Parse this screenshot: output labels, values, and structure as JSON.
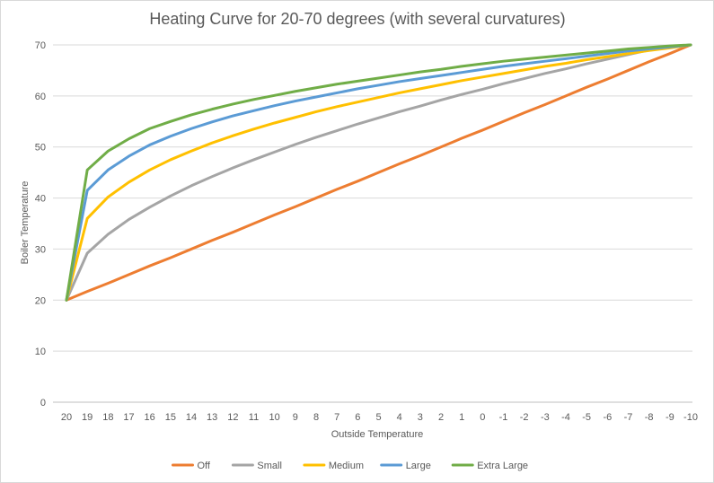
{
  "chart_data": {
    "type": "line",
    "title": "Heating Curve for 20-70 degrees (with several curvatures)",
    "xlabel": "Outside Temperature",
    "ylabel": "Boiler Temperature",
    "categories": [
      "20",
      "19",
      "18",
      "17",
      "16",
      "15",
      "14",
      "13",
      "12",
      "11",
      "10",
      "9",
      "8",
      "7",
      "6",
      "5",
      "4",
      "3",
      "2",
      "1",
      "0",
      "-1",
      "-2",
      "-3",
      "-4",
      "-5",
      "-6",
      "-7",
      "-8",
      "-9",
      "-10"
    ],
    "ylim": [
      0,
      70
    ],
    "yticks": [
      "0",
      "10",
      "20",
      "30",
      "40",
      "50",
      "60",
      "70"
    ],
    "grid": true,
    "legend_position": "bottom",
    "series": [
      {
        "name": "Off",
        "color": "#ed7d31",
        "values": [
          20,
          21.7,
          23.3,
          25,
          26.7,
          28.3,
          30,
          31.7,
          33.3,
          35,
          36.7,
          38.3,
          40,
          41.7,
          43.3,
          45,
          46.7,
          48.3,
          50,
          51.7,
          53.3,
          55,
          56.7,
          58.3,
          60,
          61.7,
          63.3,
          65,
          66.7,
          68.3,
          70
        ]
      },
      {
        "name": "Small",
        "color": "#a5a5a5",
        "values": [
          20,
          29.2,
          32.9,
          35.8,
          38.2,
          40.4,
          42.4,
          44.2,
          45.9,
          47.5,
          49,
          50.5,
          51.9,
          53.2,
          54.5,
          55.7,
          56.9,
          58,
          59.2,
          60.3,
          61.3,
          62.4,
          63.4,
          64.4,
          65.3,
          66.3,
          67.2,
          68.1,
          69,
          69.5,
          70
        ]
      },
      {
        "name": "Medium",
        "color": "#ffc000",
        "values": [
          20,
          36,
          40.2,
          43.1,
          45.5,
          47.5,
          49.2,
          50.8,
          52.2,
          53.5,
          54.7,
          55.8,
          56.9,
          57.9,
          58.8,
          59.7,
          60.6,
          61.4,
          62.2,
          63,
          63.7,
          64.4,
          65.1,
          65.8,
          66.4,
          67.1,
          67.7,
          68.3,
          68.9,
          69.4,
          70
        ]
      },
      {
        "name": "Large",
        "color": "#5b9bd5",
        "values": [
          20,
          41.5,
          45.5,
          48.2,
          50.4,
          52.1,
          53.6,
          54.9,
          56.1,
          57.1,
          58.1,
          59,
          59.8,
          60.6,
          61.4,
          62.1,
          62.8,
          63.4,
          64,
          64.6,
          65.2,
          65.8,
          66.3,
          66.8,
          67.3,
          67.8,
          68.3,
          68.8,
          69.2,
          69.6,
          70
        ]
      },
      {
        "name": "Extra Large",
        "color": "#70ad47",
        "values": [
          20,
          45.5,
          49.2,
          51.6,
          53.6,
          55,
          56.3,
          57.4,
          58.4,
          59.3,
          60.1,
          60.9,
          61.6,
          62.3,
          62.9,
          63.5,
          64.1,
          64.7,
          65.2,
          65.8,
          66.3,
          66.8,
          67.2,
          67.6,
          68,
          68.4,
          68.8,
          69.2,
          69.5,
          69.8,
          70
        ]
      }
    ]
  }
}
